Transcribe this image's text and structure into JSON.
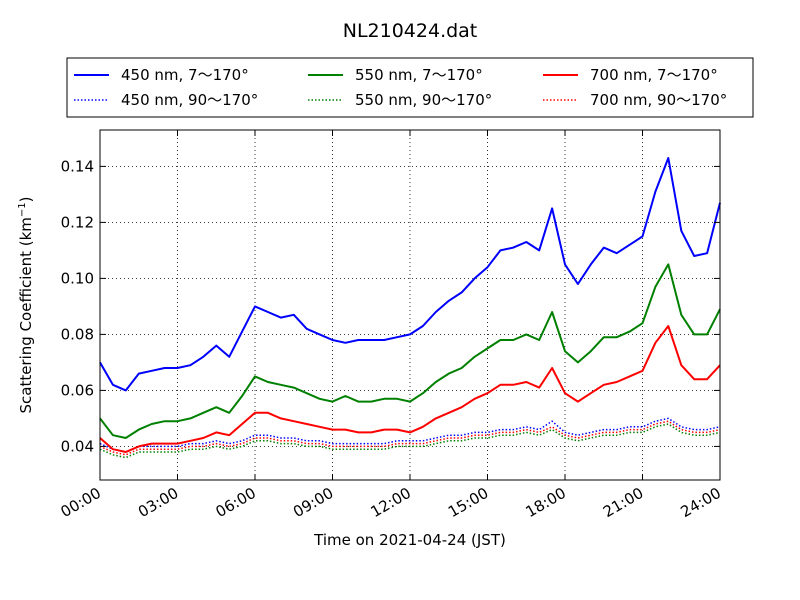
{
  "chart_data": {
    "type": "line",
    "title": "NL210424.dat",
    "xlabel": "Time on 2021-04-24 (JST)",
    "ylabel": "Scattering Coefficient (km",
    "ylabel_sup": "−1",
    "ylabel_close": ")",
    "x_unit": "hours",
    "xlim": [
      0,
      24
    ],
    "ylim": [
      0.028,
      0.153
    ],
    "grid": true,
    "legend_position": "top",
    "x_ticks": [
      {
        "value": 0,
        "label": "00:00"
      },
      {
        "value": 3,
        "label": "03:00"
      },
      {
        "value": 6,
        "label": "06:00"
      },
      {
        "value": 9,
        "label": "09:00"
      },
      {
        "value": 12,
        "label": "12:00"
      },
      {
        "value": 15,
        "label": "15:00"
      },
      {
        "value": 18,
        "label": "18:00"
      },
      {
        "value": 21,
        "label": "21:00"
      },
      {
        "value": 24,
        "label": "24:00"
      }
    ],
    "y_ticks": [
      {
        "value": 0.04,
        "label": "0.04"
      },
      {
        "value": 0.06,
        "label": "0.06"
      },
      {
        "value": 0.08,
        "label": "0.08"
      },
      {
        "value": 0.1,
        "label": "0.10"
      },
      {
        "value": 0.12,
        "label": "0.12"
      },
      {
        "value": 0.14,
        "label": "0.14"
      }
    ],
    "x": [
      0,
      0.5,
      1,
      1.5,
      2,
      2.5,
      3,
      3.5,
      4,
      4.5,
      5,
      5.5,
      6,
      6.5,
      7,
      7.5,
      8,
      8.5,
      9,
      9.5,
      10,
      10.5,
      11,
      11.5,
      12,
      12.5,
      13,
      13.5,
      14,
      14.5,
      15,
      15.5,
      16,
      16.5,
      17,
      17.5,
      18,
      18.5,
      19,
      19.5,
      20,
      20.5,
      21,
      21.5,
      22,
      22.5,
      23,
      23.5,
      24
    ],
    "series": [
      {
        "name": "450 nm, 7～170°",
        "color": "#0000ff",
        "style": "solid",
        "values": [
          0.07,
          0.062,
          0.06,
          0.066,
          0.067,
          0.068,
          0.068,
          0.069,
          0.072,
          0.076,
          0.072,
          0.081,
          0.09,
          0.088,
          0.086,
          0.087,
          0.082,
          0.08,
          0.078,
          0.077,
          0.078,
          0.078,
          0.078,
          0.079,
          0.08,
          0.083,
          0.088,
          0.092,
          0.095,
          0.1,
          0.104,
          0.11,
          0.111,
          0.113,
          0.11,
          0.125,
          0.105,
          0.098,
          0.105,
          0.111,
          0.109,
          0.112,
          0.115,
          0.131,
          0.143,
          0.117,
          0.108,
          0.109,
          0.127
        ]
      },
      {
        "name": "550 nm, 7～170°",
        "color": "#008000",
        "style": "solid",
        "values": [
          0.05,
          0.044,
          0.043,
          0.046,
          0.048,
          0.049,
          0.049,
          0.05,
          0.052,
          0.054,
          0.052,
          0.058,
          0.065,
          0.063,
          0.062,
          0.061,
          0.059,
          0.057,
          0.056,
          0.058,
          0.056,
          0.056,
          0.057,
          0.057,
          0.056,
          0.059,
          0.063,
          0.066,
          0.068,
          0.072,
          0.075,
          0.078,
          0.078,
          0.08,
          0.078,
          0.088,
          0.074,
          0.07,
          0.074,
          0.079,
          0.079,
          0.081,
          0.084,
          0.097,
          0.105,
          0.087,
          0.08,
          0.08,
          0.089
        ]
      },
      {
        "name": "700 nm, 7～170°",
        "color": "#ff0000",
        "style": "solid",
        "values": [
          0.043,
          0.039,
          0.038,
          0.04,
          0.041,
          0.041,
          0.041,
          0.042,
          0.043,
          0.045,
          0.044,
          0.048,
          0.052,
          0.052,
          0.05,
          0.049,
          0.048,
          0.047,
          0.046,
          0.046,
          0.045,
          0.045,
          0.046,
          0.046,
          0.045,
          0.047,
          0.05,
          0.052,
          0.054,
          0.057,
          0.059,
          0.062,
          0.062,
          0.063,
          0.061,
          0.068,
          0.059,
          0.056,
          0.059,
          0.062,
          0.063,
          0.065,
          0.067,
          0.077,
          0.083,
          0.069,
          0.064,
          0.064,
          0.069
        ]
      },
      {
        "name": "450 nm, 90～170°",
        "color": "#0000ff",
        "style": "dotted",
        "values": [
          0.041,
          0.039,
          0.038,
          0.04,
          0.04,
          0.04,
          0.04,
          0.041,
          0.041,
          0.042,
          0.041,
          0.042,
          0.044,
          0.044,
          0.043,
          0.043,
          0.042,
          0.042,
          0.041,
          0.041,
          0.041,
          0.041,
          0.041,
          0.042,
          0.042,
          0.042,
          0.043,
          0.044,
          0.044,
          0.045,
          0.045,
          0.046,
          0.046,
          0.047,
          0.046,
          0.049,
          0.045,
          0.044,
          0.045,
          0.046,
          0.046,
          0.047,
          0.047,
          0.049,
          0.05,
          0.047,
          0.046,
          0.046,
          0.047
        ]
      },
      {
        "name": "550 nm, 90～170°",
        "color": "#008000",
        "style": "dotted",
        "values": [
          0.039,
          0.037,
          0.036,
          0.038,
          0.038,
          0.038,
          0.038,
          0.039,
          0.039,
          0.04,
          0.039,
          0.04,
          0.042,
          0.042,
          0.041,
          0.041,
          0.04,
          0.04,
          0.039,
          0.039,
          0.039,
          0.039,
          0.039,
          0.04,
          0.04,
          0.04,
          0.041,
          0.042,
          0.042,
          0.043,
          0.043,
          0.044,
          0.044,
          0.045,
          0.044,
          0.046,
          0.043,
          0.042,
          0.043,
          0.044,
          0.044,
          0.045,
          0.045,
          0.047,
          0.048,
          0.045,
          0.044,
          0.044,
          0.045
        ]
      },
      {
        "name": "700 nm, 90～170°",
        "color": "#ff0000",
        "style": "dotted",
        "values": [
          0.04,
          0.038,
          0.037,
          0.039,
          0.039,
          0.039,
          0.039,
          0.04,
          0.04,
          0.041,
          0.04,
          0.041,
          0.043,
          0.043,
          0.042,
          0.042,
          0.041,
          0.041,
          0.04,
          0.04,
          0.04,
          0.04,
          0.04,
          0.041,
          0.041,
          0.041,
          0.042,
          0.043,
          0.043,
          0.044,
          0.044,
          0.045,
          0.045,
          0.046,
          0.045,
          0.047,
          0.044,
          0.043,
          0.044,
          0.045,
          0.045,
          0.046,
          0.046,
          0.048,
          0.049,
          0.046,
          0.045,
          0.045,
          0.046
        ]
      }
    ]
  }
}
